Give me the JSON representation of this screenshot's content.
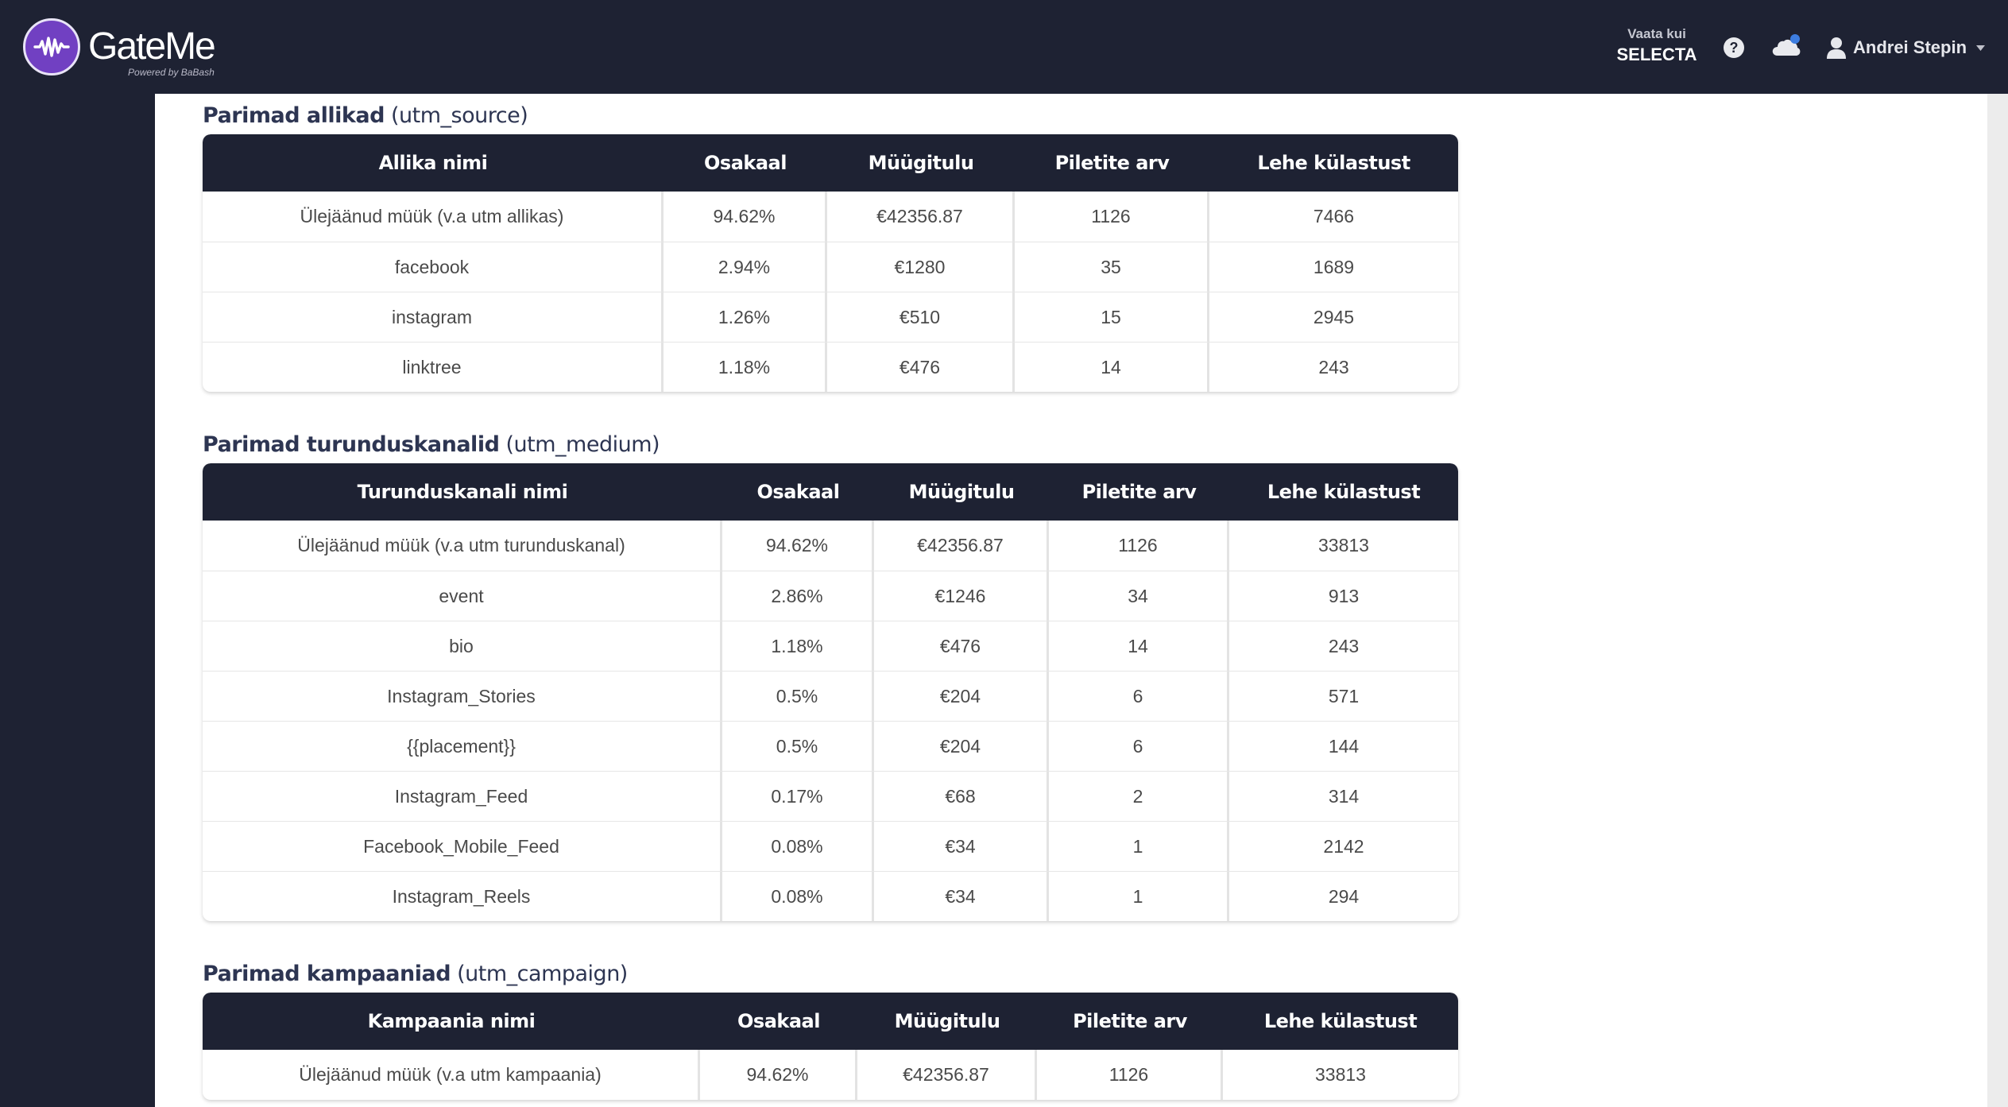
{
  "header": {
    "logo_name": "GateMe",
    "logo_subtitle": "Powered by BaBash",
    "view_as_label": "Vaata kui",
    "view_as_value": "SELECTA",
    "user_name": "Andrei Stepin",
    "colors": {
      "bar": "#1e2233",
      "logo": "#7140c2",
      "badge": "#3d7de0"
    },
    "icons": [
      "help-icon",
      "cloud-icon",
      "user-icon",
      "caret-down-icon"
    ]
  },
  "sources": {
    "title_bold": "Parimad allikad",
    "title_suffix": "(utm_source)",
    "headers": [
      "Allika nimi",
      "Osakaal",
      "Müügitulu",
      "Piletite arv",
      "Lehe külastust"
    ],
    "rows": [
      [
        "Ülejäänud müük (v.a utm allikas)",
        "94.62%",
        "€42356.87",
        "1126",
        "7466"
      ],
      [
        "facebook",
        "2.94%",
        "€1280",
        "35",
        "1689"
      ],
      [
        "instagram",
        "1.26%",
        "€510",
        "15",
        "2945"
      ],
      [
        "linktree",
        "1.18%",
        "€476",
        "14",
        "243"
      ]
    ]
  },
  "mediums": {
    "title_bold": "Parimad turunduskanalid",
    "title_suffix": "(utm_medium)",
    "headers": [
      "Turunduskanali nimi",
      "Osakaal",
      "Müügitulu",
      "Piletite arv",
      "Lehe külastust"
    ],
    "rows": [
      [
        "Ülejäänud müük (v.a utm turunduskanal)",
        "94.62%",
        "€42356.87",
        "1126",
        "33813"
      ],
      [
        "event",
        "2.86%",
        "€1246",
        "34",
        "913"
      ],
      [
        "bio",
        "1.18%",
        "€476",
        "14",
        "243"
      ],
      [
        "Instagram_Stories",
        "0.5%",
        "€204",
        "6",
        "571"
      ],
      [
        "{{placement}}",
        "0.5%",
        "€204",
        "6",
        "144"
      ],
      [
        "Instagram_Feed",
        "0.17%",
        "€68",
        "2",
        "314"
      ],
      [
        "Facebook_Mobile_Feed",
        "0.08%",
        "€34",
        "1",
        "2142"
      ],
      [
        "Instagram_Reels",
        "0.08%",
        "€34",
        "1",
        "294"
      ]
    ]
  },
  "campaigns": {
    "title_bold": "Parimad kampaaniad",
    "title_suffix": "(utm_campaign)",
    "headers": [
      "Kampaania nimi",
      "Osakaal",
      "Müügitulu",
      "Piletite arv",
      "Lehe külastust"
    ],
    "rows": [
      [
        "Ülejäänud müük (v.a utm kampaania)",
        "94.62%",
        "€42356.87",
        "1126",
        "33813"
      ]
    ]
  }
}
